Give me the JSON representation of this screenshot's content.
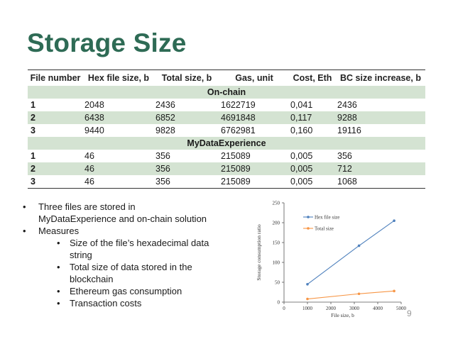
{
  "slide": {
    "title": "Storage Size",
    "page_number": "9"
  },
  "table": {
    "headers": [
      "File number",
      "Hex file size, b",
      "Total size, b",
      "Gas, unit",
      "Cost, Eth",
      "BC size increase, b"
    ],
    "sections": [
      {
        "name": "On-chain",
        "rows": [
          [
            "1",
            "2048",
            "2436",
            "1622719",
            "0,041",
            "2436"
          ],
          [
            "2",
            "6438",
            "6852",
            "4691848",
            "0,117",
            "9288"
          ],
          [
            "3",
            "9440",
            "9828",
            "6762981",
            "0,160",
            "19116"
          ]
        ]
      },
      {
        "name": "MyDataExperience",
        "rows": [
          [
            "1",
            "46",
            "356",
            "215089",
            "0,005",
            "356"
          ],
          [
            "2",
            "46",
            "356",
            "215089",
            "0,005",
            "712"
          ],
          [
            "3",
            "46",
            "356",
            "215089",
            "0,005",
            "1068"
          ]
        ]
      }
    ]
  },
  "bullets": [
    {
      "level": 1,
      "text": "Three files are stored in"
    },
    {
      "level": 1,
      "text": "MyDataExperience and on-chain solution",
      "continuation": true
    },
    {
      "level": 1,
      "text": "Measures"
    },
    {
      "level": 2,
      "text": "Size of the file’s hexadecimal data"
    },
    {
      "level": 2,
      "text": "string",
      "continuation": true
    },
    {
      "level": 2,
      "text": "Total size of data stored in the"
    },
    {
      "level": 2,
      "text": "blockchain",
      "continuation": true
    },
    {
      "level": 2,
      "text": "Ethereum gas consumption"
    },
    {
      "level": 2,
      "text": "Transaction costs"
    }
  ],
  "chart_data": {
    "type": "line",
    "xlabel": "File size, b",
    "ylabel": "Storage consumption ratio",
    "xlim": [
      0,
      5000
    ],
    "ylim": [
      0,
      250
    ],
    "xticks": [
      0,
      1000,
      2000,
      3000,
      4000,
      5000
    ],
    "yticks": [
      0,
      50,
      100,
      150,
      200,
      250
    ],
    "legend_position": "top-left",
    "series": [
      {
        "name": "Hex file size",
        "color": "#4f81bd",
        "x": [
          1000,
          3200,
          4700
        ],
        "y": [
          45,
          142,
          205
        ]
      },
      {
        "name": "Total size",
        "color": "#f79646",
        "x": [
          1000,
          3200,
          4700
        ],
        "y": [
          8,
          21,
          28
        ]
      }
    ]
  }
}
